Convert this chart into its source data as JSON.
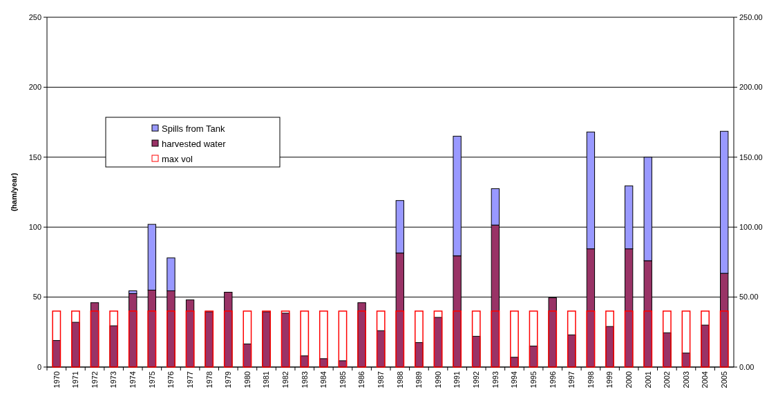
{
  "chart_data": [
    {
      "type": "bar",
      "ylabel": "(ham/year)",
      "stacked": true,
      "grid": "y",
      "legend": "top left",
      "categories": [
        "1970",
        "1971",
        "1972",
        "1973",
        "1974",
        "1975",
        "1976",
        "1977",
        "1978",
        "1979",
        "1980",
        "1981",
        "1982",
        "1983",
        "1984",
        "1985",
        "1986",
        "1987",
        "1988",
        "1989",
        "1990",
        "1991",
        "1992",
        "1993",
        "1994",
        "1995",
        "1996",
        "1997",
        "1998",
        "1999",
        "2000",
        "2001",
        "2002",
        "2003",
        "2004",
        "2005"
      ],
      "series": [
        {
          "name": "harvested water",
          "color": "#993366",
          "values": [
            19,
            32,
            46,
            29.5,
            52.5,
            55,
            54.5,
            48,
            39.5,
            53.5,
            16.5,
            39.5,
            38.5,
            8,
            6,
            4.5,
            46,
            26,
            81.5,
            17.5,
            35.5,
            79.5,
            22,
            101.5,
            7,
            15,
            49.5,
            23,
            84.5,
            29,
            84.5,
            76,
            24.5,
            10,
            30,
            67
          ]
        },
        {
          "name": "Spills from Tank",
          "color": "#9999ff",
          "values": [
            0,
            0,
            0,
            0,
            2,
            47,
            23.5,
            0,
            0,
            0,
            0,
            0,
            0,
            0,
            0,
            0,
            0,
            0,
            37.5,
            0,
            0,
            85.5,
            0,
            26,
            0,
            0,
            0,
            0,
            83.5,
            0,
            45,
            74,
            0,
            0,
            0,
            101.5
          ]
        }
      ],
      "ylim": [
        0,
        250
      ],
      "yticks": [
        0,
        50,
        100,
        150,
        200,
        250
      ],
      "y2lim": [
        0,
        250
      ],
      "y2ticks": [
        {
          "value": 0,
          "label": "0.00"
        },
        {
          "value": 50,
          "label": "50.00"
        },
        {
          "value": 100,
          "label": "100.00"
        },
        {
          "value": 150,
          "label": "150.00"
        },
        {
          "value": 200,
          "label": "200.00"
        },
        {
          "value": 250,
          "label": "250.00"
        }
      ]
    },
    {
      "type": "bar",
      "legend": "top left",
      "tick_labels": false,
      "categories": [
        "1970",
        "1971",
        "1972",
        "1973",
        "1974",
        "1975",
        "1976",
        "1977",
        "1978",
        "1979",
        "1980",
        "1981",
        "1982",
        "1983",
        "1984",
        "1985",
        "1986",
        "1987",
        "1988",
        "1989",
        "1990",
        "1991",
        "1992",
        "1993",
        "1994",
        "1995",
        "1996",
        "1997",
        "1998",
        "1999",
        "2000",
        "2001",
        "2002",
        "2003",
        "2004",
        "2005"
      ],
      "series": [
        {
          "name": "max vol",
          "color": "#ff0000",
          "values": [
            40,
            40,
            40,
            40,
            40,
            40,
            40,
            40,
            40,
            40,
            40,
            40,
            40,
            40,
            40,
            40,
            40,
            40,
            40,
            40,
            40,
            40,
            40,
            40,
            40,
            40,
            40,
            40,
            40,
            40,
            40,
            40,
            40,
            40,
            40,
            40
          ]
        }
      ],
      "ylim": [
        0,
        250
      ],
      "yticks": [
        0,
        50,
        100,
        150,
        200,
        250
      ]
    }
  ]
}
